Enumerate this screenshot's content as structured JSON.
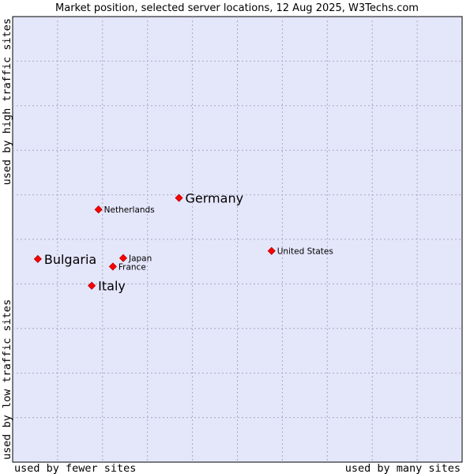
{
  "chart_data": {
    "type": "scatter",
    "title": "Market position, selected server locations, 12 Aug 2025, W3Techs.com",
    "xlabel_left": "used by fewer sites",
    "xlabel_right": "used by many sites",
    "ylabel_bottom": "used by low traffic sites",
    "ylabel_top": "used by high traffic sites",
    "xlim": [
      0,
      100
    ],
    "ylim": [
      0,
      100
    ],
    "grid": true,
    "colors": {
      "plot_background": "#e4e6fa",
      "grid": "#a8a8c0",
      "frame": "#000000",
      "marker": "#ff0000",
      "marker_edge": "#b00000"
    },
    "points": [
      {
        "label": "Germany",
        "x": 37.0,
        "y": 59.3,
        "emphasis": true
      },
      {
        "label": "Netherlands",
        "x": 19.1,
        "y": 56.7,
        "emphasis": false
      },
      {
        "label": "United States",
        "x": 57.6,
        "y": 47.4,
        "emphasis": false
      },
      {
        "label": "Bulgaria",
        "x": 5.6,
        "y": 45.6,
        "emphasis": true
      },
      {
        "label": "Japan",
        "x": 24.6,
        "y": 45.8,
        "emphasis": false
      },
      {
        "label": "France",
        "x": 22.3,
        "y": 43.9,
        "emphasis": false
      },
      {
        "label": "Italy",
        "x": 17.6,
        "y": 39.6,
        "emphasis": true
      }
    ]
  }
}
